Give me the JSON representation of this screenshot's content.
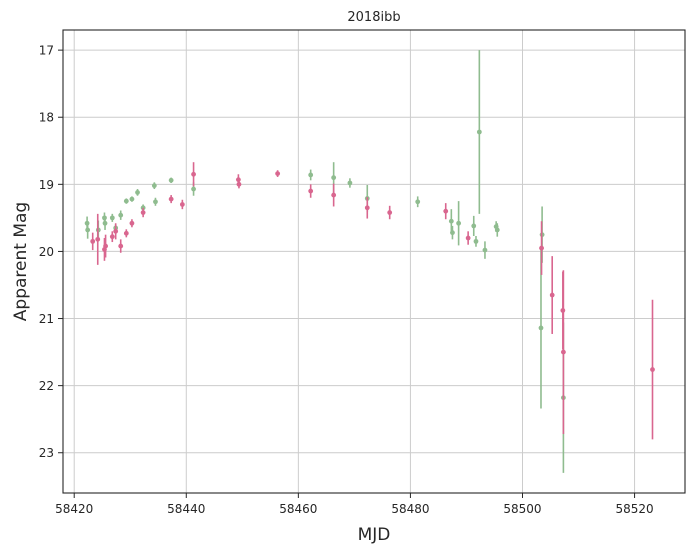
{
  "chart_data": {
    "type": "scatter",
    "title": "2018ibb",
    "xlabel": "MJD",
    "ylabel": "Apparent Mag",
    "xlim": [
      58418,
      58529
    ],
    "ylim": [
      23.6,
      16.7
    ],
    "y_inverted": true,
    "grid": true,
    "x_ticks": [
      58420,
      58440,
      58460,
      58480,
      58500,
      58520
    ],
    "y_ticks": [
      17,
      18,
      19,
      20,
      21,
      22,
      23
    ],
    "series": [
      {
        "color": "#8fbc8f",
        "points": [
          {
            "x": 58422.3,
            "y": 19.58,
            "err": 0.1
          },
          {
            "x": 58422.4,
            "y": 19.68,
            "err": 0.13
          },
          {
            "x": 58424.3,
            "y": 19.68,
            "err": 0.14
          },
          {
            "x": 58425.4,
            "y": 19.5,
            "err": 0.08
          },
          {
            "x": 58425.5,
            "y": 19.58,
            "err": 0.1
          },
          {
            "x": 58426.8,
            "y": 19.5,
            "err": 0.06
          },
          {
            "x": 58427.4,
            "y": 19.65,
            "err": 0.06
          },
          {
            "x": 58428.3,
            "y": 19.46,
            "err": 0.07
          },
          {
            "x": 58429.3,
            "y": 19.25,
            "err": 0.04
          },
          {
            "x": 58430.3,
            "y": 19.22,
            "err": 0.04
          },
          {
            "x": 58431.3,
            "y": 19.12,
            "err": 0.05
          },
          {
            "x": 58432.3,
            "y": 19.35,
            "err": 0.05
          },
          {
            "x": 58434.3,
            "y": 19.02,
            "err": 0.05
          },
          {
            "x": 58434.5,
            "y": 19.26,
            "err": 0.06
          },
          {
            "x": 58437.3,
            "y": 18.94,
            "err": 0.04
          },
          {
            "x": 58441.3,
            "y": 19.07,
            "err": 0.1
          },
          {
            "x": 58462.2,
            "y": 18.86,
            "err": 0.08
          },
          {
            "x": 58466.3,
            "y": 18.9,
            "err": 0.23
          },
          {
            "x": 58469.2,
            "y": 18.98,
            "err": 0.07
          },
          {
            "x": 58472.3,
            "y": 19.21,
            "err": 0.2
          },
          {
            "x": 58481.3,
            "y": 19.26,
            "err": 0.08
          },
          {
            "x": 58487.3,
            "y": 19.55,
            "err": 0.18
          },
          {
            "x": 58487.5,
            "y": 19.72,
            "err": 0.1
          },
          {
            "x": 58488.6,
            "y": 19.58,
            "err": 0.33
          },
          {
            "x": 58491.3,
            "y": 19.62,
            "err": 0.15
          },
          {
            "x": 58491.7,
            "y": 19.85,
            "err": 0.08
          },
          {
            "x": 58492.3,
            "y": 18.22,
            "err": 1.22
          },
          {
            "x": 58493.3,
            "y": 19.98,
            "err": 0.13
          },
          {
            "x": 58495.3,
            "y": 19.63,
            "err": 0.08
          },
          {
            "x": 58495.5,
            "y": 19.68,
            "err": 0.1
          },
          {
            "x": 58503.3,
            "y": 21.14,
            "err": 1.2
          },
          {
            "x": 58503.5,
            "y": 19.75,
            "err": 0.42
          },
          {
            "x": 58507.3,
            "y": 22.18,
            "err": 1.12
          }
        ]
      },
      {
        "color": "#d9668f",
        "points": [
          {
            "x": 58423.3,
            "y": 19.85,
            "err": 0.13
          },
          {
            "x": 58424.2,
            "y": 19.82,
            "err": 0.38
          },
          {
            "x": 58425.4,
            "y": 19.97,
            "err": 0.17
          },
          {
            "x": 58425.6,
            "y": 19.92,
            "err": 0.17
          },
          {
            "x": 58426.8,
            "y": 19.78,
            "err": 0.08
          },
          {
            "x": 58427.4,
            "y": 19.7,
            "err": 0.12
          },
          {
            "x": 58428.3,
            "y": 19.92,
            "err": 0.1
          },
          {
            "x": 58429.3,
            "y": 19.73,
            "err": 0.06
          },
          {
            "x": 58430.3,
            "y": 19.58,
            "err": 0.06
          },
          {
            "x": 58432.3,
            "y": 19.42,
            "err": 0.07
          },
          {
            "x": 58437.3,
            "y": 19.22,
            "err": 0.06
          },
          {
            "x": 58439.3,
            "y": 19.3,
            "err": 0.07
          },
          {
            "x": 58441.3,
            "y": 18.85,
            "err": 0.18
          },
          {
            "x": 58449.3,
            "y": 18.93,
            "err": 0.08
          },
          {
            "x": 58449.4,
            "y": 19.0,
            "err": 0.06
          },
          {
            "x": 58456.3,
            "y": 18.84,
            "err": 0.05
          },
          {
            "x": 58462.2,
            "y": 19.1,
            "err": 0.1
          },
          {
            "x": 58466.3,
            "y": 19.16,
            "err": 0.17
          },
          {
            "x": 58472.3,
            "y": 19.35,
            "err": 0.16
          },
          {
            "x": 58476.3,
            "y": 19.42,
            "err": 0.1
          },
          {
            "x": 58486.3,
            "y": 19.4,
            "err": 0.12
          },
          {
            "x": 58490.3,
            "y": 19.8,
            "err": 0.1
          },
          {
            "x": 58503.4,
            "y": 19.95,
            "err": 0.4
          },
          {
            "x": 58505.3,
            "y": 20.65,
            "err": 0.58
          },
          {
            "x": 58507.2,
            "y": 20.88,
            "err": 0.58
          },
          {
            "x": 58507.3,
            "y": 21.5,
            "err": 1.22
          },
          {
            "x": 58523.2,
            "y": 21.76,
            "err": 1.04
          }
        ]
      }
    ]
  }
}
